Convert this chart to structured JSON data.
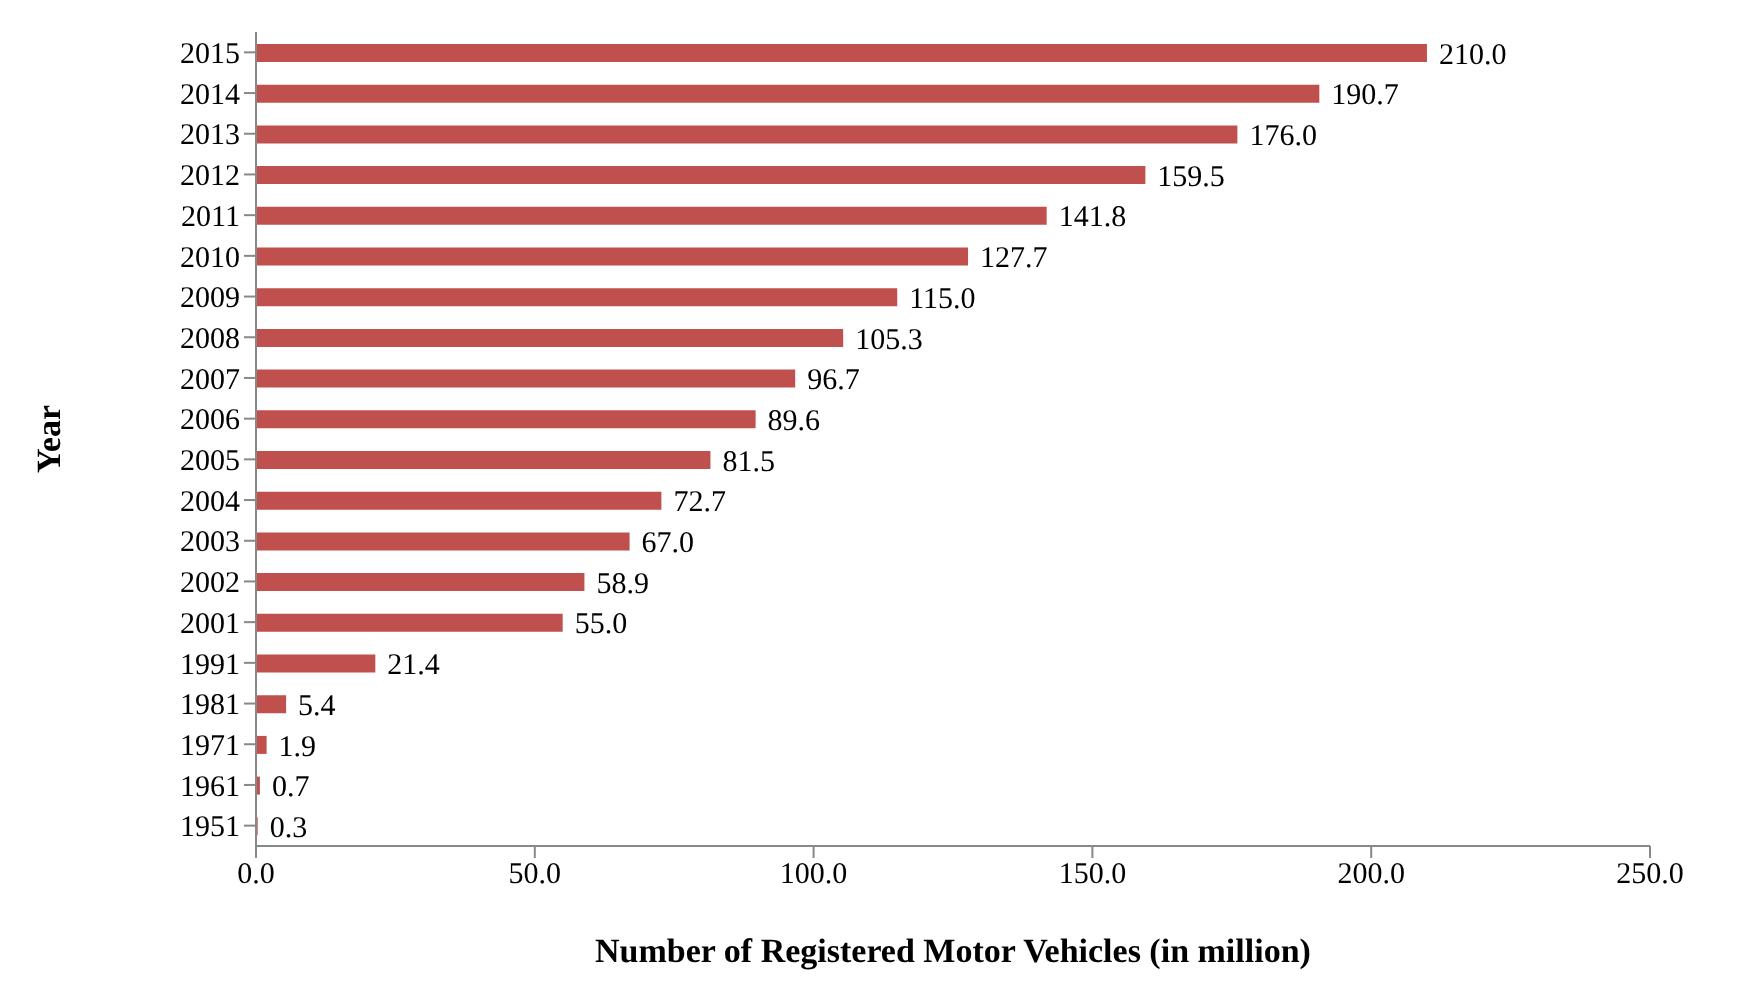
{
  "chart_data": {
    "type": "bar",
    "orientation": "horizontal",
    "xlabel": "Number of Registered Motor Vehicles (in million)",
    "ylabel": "Year",
    "categories": [
      "2015",
      "2014",
      "2013",
      "2012",
      "2011",
      "2010",
      "2009",
      "2008",
      "2007",
      "2006",
      "2005",
      "2004",
      "2003",
      "2002",
      "2001",
      "1991",
      "1981",
      "1971",
      "1961",
      "1951"
    ],
    "values": [
      210.0,
      190.7,
      176.0,
      159.5,
      141.8,
      127.7,
      115.0,
      105.3,
      96.7,
      89.6,
      81.5,
      72.7,
      67.0,
      58.9,
      55.0,
      21.4,
      5.4,
      1.9,
      0.7,
      0.3
    ],
    "value_labels": [
      "210.0",
      "190.7",
      "176.0",
      "159.5",
      "141.8",
      "127.7",
      "115.0",
      "105.3",
      "96.7",
      "89.6",
      "81.5",
      "72.7",
      "67.0",
      "58.9",
      "55.0",
      "21.4",
      "5.4",
      "1.9",
      "0.7",
      "0.3"
    ],
    "color": "#c0504d",
    "xlim": [
      0,
      250
    ],
    "xticks": [
      {
        "value": 0,
        "label": "0.0"
      },
      {
        "value": 50,
        "label": "50.0"
      },
      {
        "value": 100,
        "label": "100.0"
      },
      {
        "value": 150,
        "label": "150.0"
      },
      {
        "value": 200,
        "label": "200.0"
      },
      {
        "value": 250,
        "label": "250.0"
      }
    ],
    "grid": false
  }
}
